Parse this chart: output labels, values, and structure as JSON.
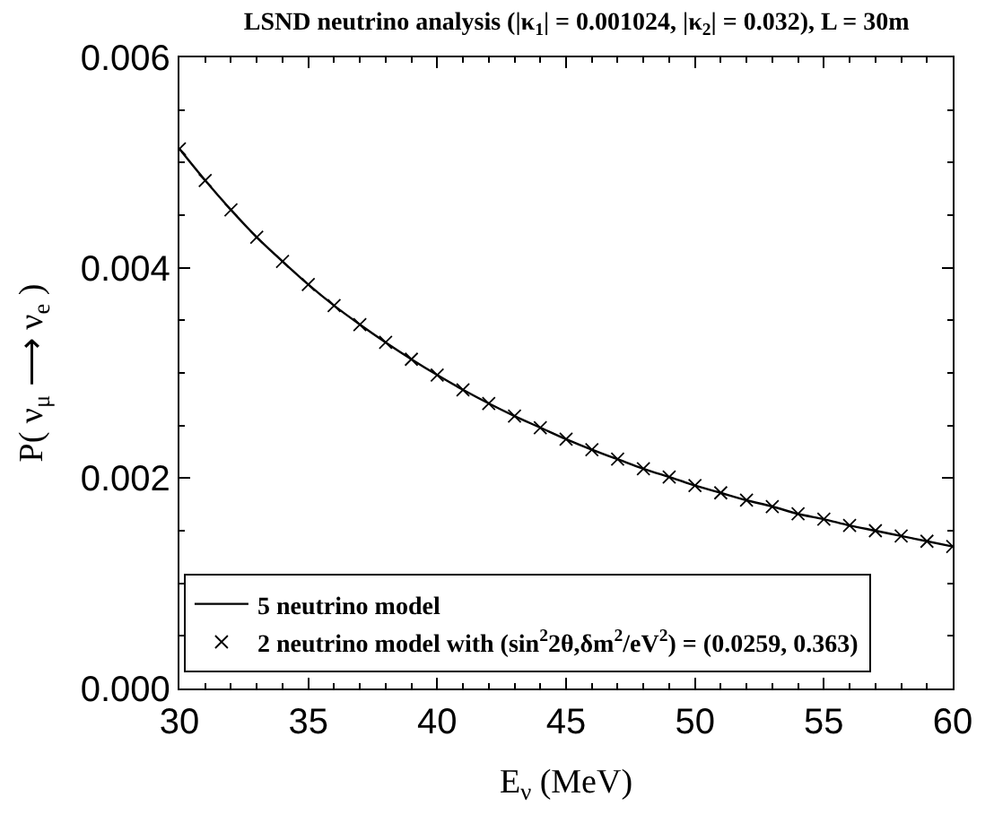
{
  "chart_data": {
    "type": "line",
    "title": "LSND neutrino analysis (|κ$_{1}$| = 0.001024, |κ$_{2}$| = 0.032), L = 30m",
    "xlabel": "E$_{ν}$ (MeV)",
    "ylabel": "P( ν$_{μ}$ ⟶ ν$_{e}$ )",
    "x": [
      30,
      31,
      32,
      33,
      34,
      35,
      36,
      37,
      38,
      39,
      40,
      41,
      42,
      43,
      44,
      45,
      46,
      47,
      48,
      49,
      50,
      51,
      52,
      53,
      54,
      55,
      56,
      57,
      58,
      59,
      60
    ],
    "series": [
      {
        "name": "5 neutrino model",
        "color": "#000000",
        "marker": "none",
        "values": [
          0.00513,
          0.00483,
          0.00455,
          0.00429,
          0.00406,
          0.00384,
          0.00364,
          0.00346,
          0.00329,
          0.00313,
          0.00298,
          0.00284,
          0.00271,
          0.00259,
          0.00248,
          0.00237,
          0.00227,
          0.00218,
          0.00209,
          0.00201,
          0.00193,
          0.00186,
          0.00179,
          0.00173,
          0.00166,
          0.00161,
          0.00155,
          0.0015,
          0.00145,
          0.0014,
          0.00135
        ]
      },
      {
        "name": "2 neutrino model with (sin$^{2}$2θ,δm$^{2}$/eV$^{2}$) = (0.0259, 0.363)",
        "color": "#000000",
        "type": "scatter",
        "marker": "cross",
        "values": [
          0.00513,
          0.00483,
          0.00455,
          0.00429,
          0.00406,
          0.00384,
          0.00364,
          0.00346,
          0.00329,
          0.00313,
          0.00298,
          0.00284,
          0.00271,
          0.00259,
          0.00248,
          0.00237,
          0.00227,
          0.00218,
          0.00209,
          0.00201,
          0.00193,
          0.00186,
          0.00179,
          0.00173,
          0.00166,
          0.00161,
          0.00155,
          0.0015,
          0.00145,
          0.0014,
          0.00135
        ]
      }
    ],
    "xlim": [
      30,
      60
    ],
    "xticks": [
      30,
      35,
      40,
      45,
      50,
      55,
      60
    ],
    "ylim": [
      0,
      0.006
    ],
    "yticks": [
      {
        "value": 0,
        "label": "0.000"
      },
      {
        "value": 0.002,
        "label": "0.002"
      },
      {
        "value": 0.004,
        "label": "0.004"
      },
      {
        "value": 0.006,
        "label": "0.006"
      }
    ],
    "legend": "bottom"
  }
}
